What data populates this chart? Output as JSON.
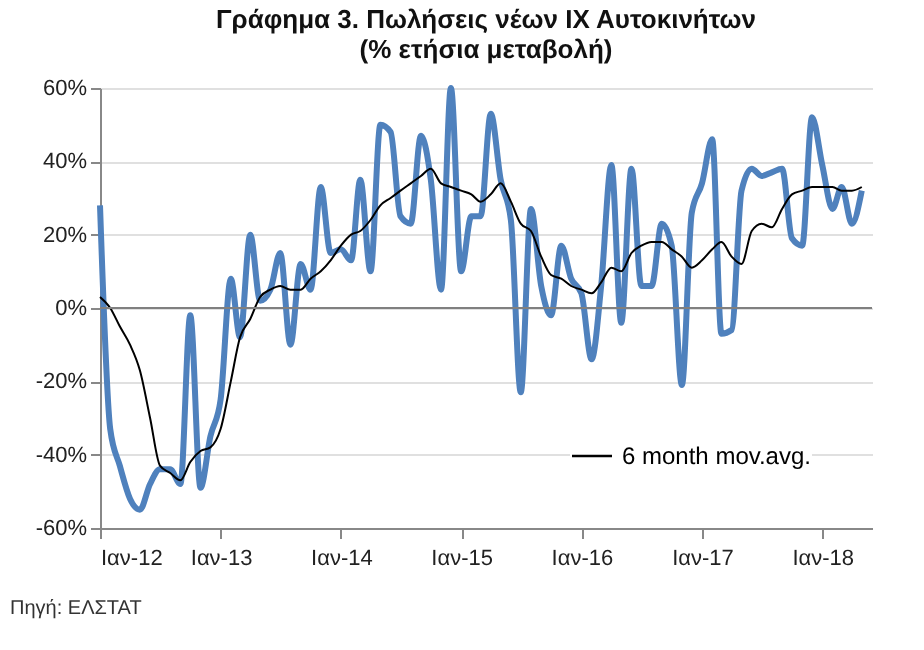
{
  "chart_data": {
    "type": "line",
    "title": [
      "Γράφημα 3. Πωλήσεις νέων ΙΧ Αυτοκινήτων",
      "(% ετήσια μεταβολή)"
    ],
    "x": [
      "2012-01",
      "2012-02",
      "2012-03",
      "2012-04",
      "2012-05",
      "2012-06",
      "2012-07",
      "2012-08",
      "2012-09",
      "2012-10",
      "2012-11",
      "2012-12",
      "2013-01",
      "2013-02",
      "2013-03",
      "2013-04",
      "2013-05",
      "2013-06",
      "2013-07",
      "2013-08",
      "2013-09",
      "2013-10",
      "2013-11",
      "2013-12",
      "2014-01",
      "2014-02",
      "2014-03",
      "2014-04",
      "2014-05",
      "2014-06",
      "2014-07",
      "2014-08",
      "2014-09",
      "2014-10",
      "2014-11",
      "2014-12",
      "2015-01",
      "2015-02",
      "2015-03",
      "2015-04",
      "2015-05",
      "2015-06",
      "2015-07",
      "2015-08",
      "2015-09",
      "2015-10",
      "2015-11",
      "2015-12",
      "2016-01",
      "2016-02",
      "2016-03",
      "2016-04",
      "2016-05",
      "2016-06",
      "2016-07",
      "2016-08",
      "2016-09",
      "2016-10",
      "2016-11",
      "2016-12",
      "2017-01",
      "2017-02",
      "2017-03",
      "2017-04",
      "2017-05",
      "2017-06",
      "2017-07",
      "2017-08",
      "2017-09",
      "2017-10",
      "2017-11",
      "2017-12",
      "2018-01",
      "2018-02",
      "2018-03",
      "2018-04",
      "2018-05"
    ],
    "series": [
      {
        "color": "#4f81bd",
        "type": "line",
        "values": [
          28,
          -33,
          -43,
          -52,
          -55,
          -48,
          -44,
          -44,
          -48,
          -2,
          -49,
          -35,
          -25,
          8,
          -8,
          20,
          2,
          5,
          15,
          -10,
          12,
          5,
          33,
          15,
          16,
          13,
          35,
          10,
          50,
          48,
          25,
          23,
          47,
          35,
          5,
          60,
          10,
          25,
          25,
          53,
          35,
          24,
          -23,
          27,
          6,
          -2,
          17,
          8,
          4,
          -14,
          6,
          39,
          -4,
          38,
          6,
          6,
          23,
          17,
          -21,
          26,
          34,
          46,
          -7,
          -6,
          32,
          38,
          36,
          37,
          38,
          19,
          17,
          52,
          39,
          27,
          33,
          23,
          32
        ]
      },
      {
        "name": "6 month mov.avg.",
        "color": "#000000",
        "type": "line",
        "values": [
          3,
          0,
          -5,
          -10,
          -17,
          -30,
          -43,
          -45,
          -47,
          -42,
          -39,
          -38,
          -33,
          -20,
          -8,
          -3,
          3,
          5,
          6,
          5,
          5,
          8,
          10,
          13,
          17,
          20,
          21,
          24,
          28,
          30,
          32,
          34,
          36,
          38,
          34,
          33,
          32,
          31,
          29,
          31,
          34,
          29,
          23,
          21,
          14,
          9,
          8,
          6,
          5,
          4,
          7,
          11,
          10,
          15,
          17,
          18,
          18,
          16,
          14,
          11,
          13,
          16,
          18,
          14,
          12,
          21,
          23,
          22,
          27,
          31,
          32,
          33,
          33,
          33,
          32,
          32,
          33
        ]
      }
    ],
    "xlim": [
      "2012-01",
      "2018-06"
    ],
    "xticks": [
      {
        "value": "2012-01",
        "label": "Ιαν-12"
      },
      {
        "value": "2013-01",
        "label": "Ιαν-13"
      },
      {
        "value": "2014-01",
        "label": "Ιαν-14"
      },
      {
        "value": "2015-01",
        "label": "Ιαν-15"
      },
      {
        "value": "2016-01",
        "label": "Ιαν-16"
      },
      {
        "value": "2017-01",
        "label": "Ιαν-17"
      },
      {
        "value": "2018-01",
        "label": "Ιαν-18"
      }
    ],
    "ylim": [
      -60,
      60
    ],
    "yticks": [
      {
        "value": -60,
        "label": "-60%"
      },
      {
        "value": -40,
        "label": "-40%"
      },
      {
        "value": -20,
        "label": "-20%"
      },
      {
        "value": 0,
        "label": "0%"
      },
      {
        "value": 20,
        "label": "20%"
      },
      {
        "value": 40,
        "label": "40%"
      },
      {
        "value": 60,
        "label": "60%"
      }
    ],
    "ref_lines": [
      {
        "axis": "y",
        "value": 0,
        "color": "#808080"
      }
    ],
    "grid": "y",
    "legend": "bottom right",
    "annotations": [
      "Πηγή: ΕΛΣΤΑΤ"
    ]
  }
}
